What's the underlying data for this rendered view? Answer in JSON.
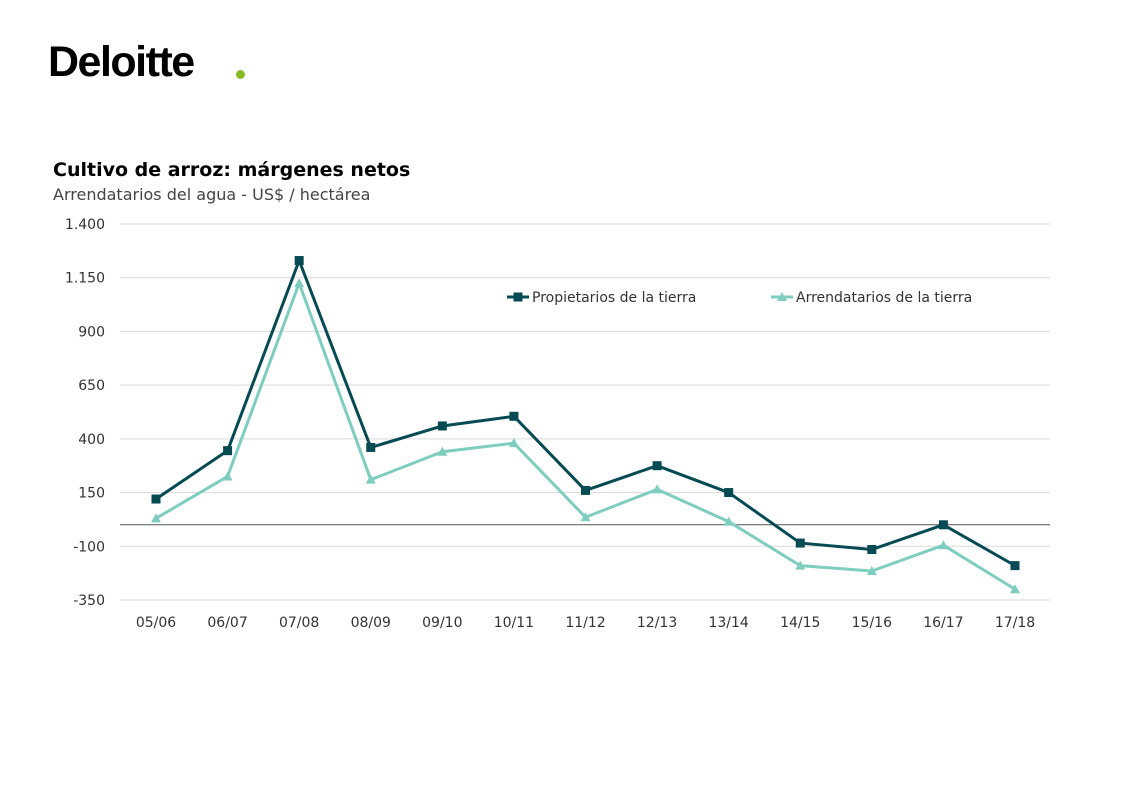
{
  "header": {
    "logo_text": "Deloitte",
    "logo_dot_color": "#86bc25"
  },
  "chart_data": {
    "type": "line",
    "title": "Cultivo de arroz: márgenes netos",
    "subtitle": "Arrendatarios del agua - US$ / hectárea",
    "xlabel": "",
    "ylabel": "",
    "categories": [
      "05/06",
      "06/07",
      "07/08",
      "08/09",
      "09/10",
      "10/11",
      "11/12",
      "12/13",
      "13/14",
      "14/15",
      "15/16",
      "16/17",
      "17/18"
    ],
    "ylim": [
      -350,
      1400
    ],
    "yticks": [
      -350,
      -100,
      150,
      400,
      650,
      900,
      1150,
      1400
    ],
    "ytick_labels": [
      "-350",
      "-100",
      "150",
      "400",
      "650",
      "900",
      "1.150",
      "1.400"
    ],
    "grid": true,
    "legend_position": "top-right",
    "series": [
      {
        "name": "Propietarios de la tierra",
        "color": "#064a53",
        "marker": "square",
        "values": [
          120,
          345,
          1230,
          360,
          460,
          505,
          160,
          275,
          150,
          -85,
          -115,
          0,
          -190
        ]
      },
      {
        "name": "Arrendatarios de la tierra",
        "color": "#7ecdbf",
        "marker": "triangle",
        "values": [
          30,
          225,
          1125,
          210,
          340,
          380,
          35,
          165,
          15,
          -190,
          -215,
          -95,
          -300
        ]
      }
    ]
  }
}
